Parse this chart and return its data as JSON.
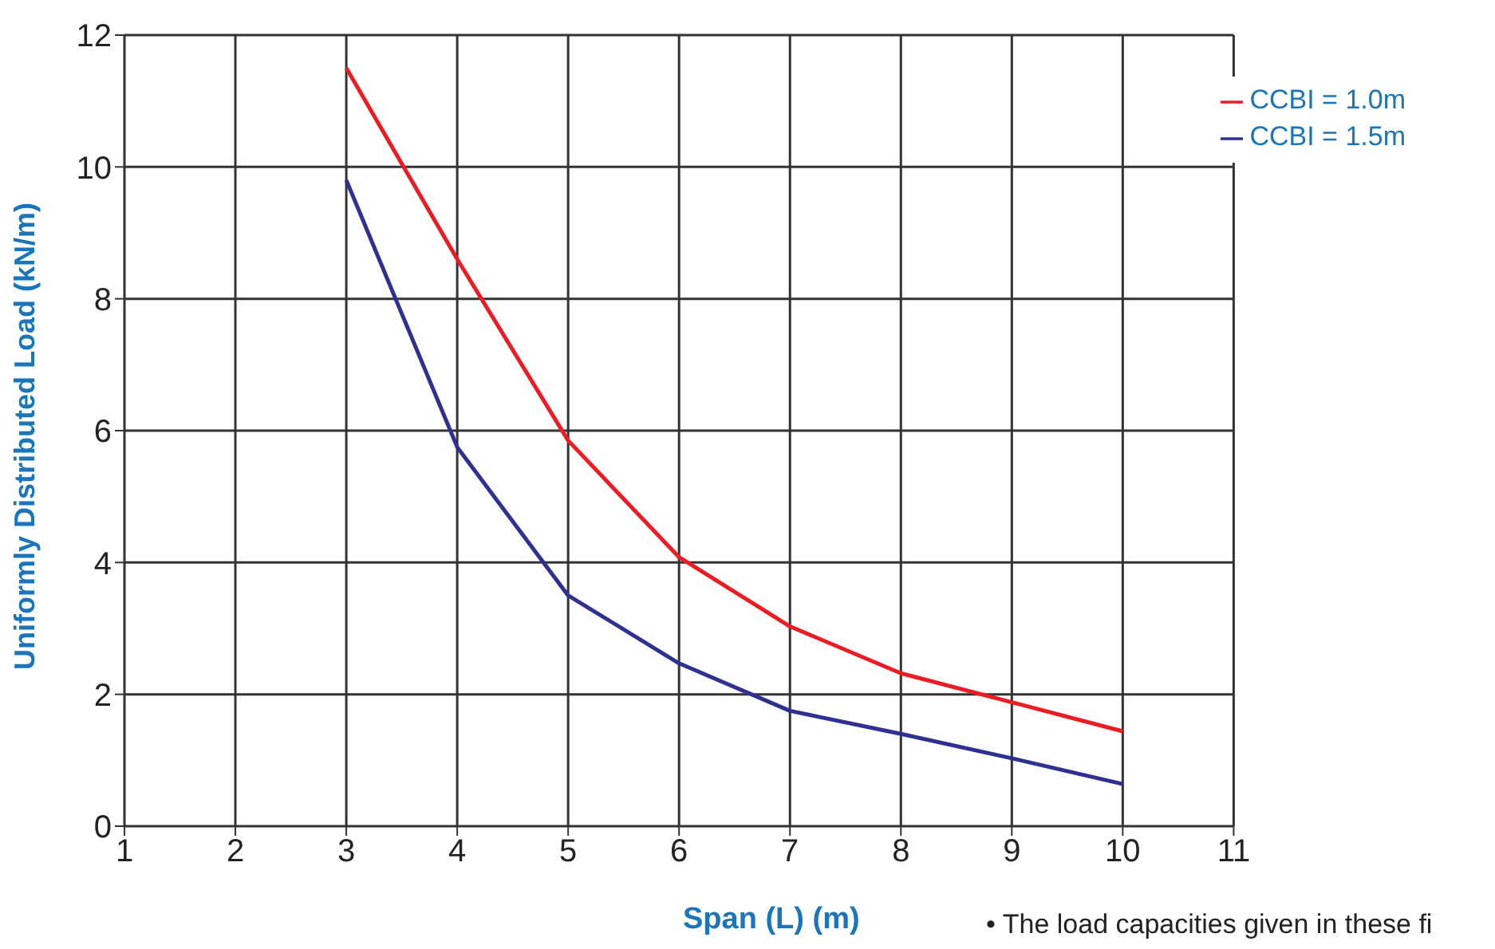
{
  "chart_data": {
    "type": "line",
    "xlabel": "Span (L) (m)",
    "ylabel": "Uniformly Distributed Load (kN/m)",
    "x": [
      3,
      4,
      5,
      6,
      7,
      8,
      9,
      10
    ],
    "series": [
      {
        "name": "CCBI = 1.0m",
        "color": "#ed1c24",
        "values": [
          11.5,
          8.6,
          5.85,
          4.08,
          3.03,
          2.32,
          1.88,
          1.44
        ]
      },
      {
        "name": "CCBI = 1.5m",
        "color": "#2e3192",
        "values": [
          9.8,
          5.75,
          3.5,
          2.47,
          1.75,
          1.4,
          1.03,
          0.64
        ]
      }
    ],
    "xlim": [
      1,
      11
    ],
    "xticks": [
      1,
      2,
      3,
      4,
      5,
      6,
      7,
      8,
      9,
      10,
      11
    ],
    "ylim": [
      0,
      12
    ],
    "yticks": [
      0,
      2,
      4,
      6,
      8,
      10,
      12
    ],
    "grid": true,
    "legend": "top right",
    "marker": "none",
    "line_style": "solid",
    "annotations": [
      "• The load capacities given in these fi"
    ]
  }
}
